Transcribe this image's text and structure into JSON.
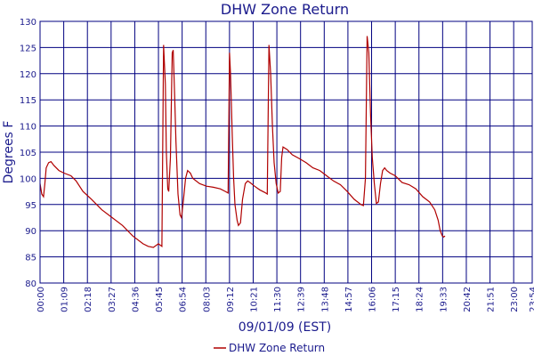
{
  "chart_data": {
    "type": "line",
    "title": "DHW Zone Return",
    "xlabel": "09/01/09 (EST)",
    "ylabel": "Degrees F",
    "ylim": [
      80,
      130
    ],
    "yticks": [
      80,
      85,
      90,
      95,
      100,
      105,
      110,
      115,
      120,
      125,
      130
    ],
    "xlim_minutes": [
      0,
      1434
    ],
    "xtick_labels": [
      "00:00",
      "01:09",
      "02:18",
      "03:27",
      "04:36",
      "05:45",
      "06:54",
      "08:03",
      "09:12",
      "10:21",
      "11:30",
      "12:39",
      "13:48",
      "14:57",
      "16:06",
      "17:15",
      "18:24",
      "19:33",
      "20:42",
      "21:51",
      "23:00",
      "23:54"
    ],
    "xtick_minutes": [
      0,
      69,
      138,
      207,
      276,
      345,
      414,
      483,
      552,
      621,
      690,
      759,
      828,
      897,
      966,
      1035,
      1104,
      1173,
      1242,
      1311,
      1380,
      1434
    ],
    "grid": true,
    "legend_position": "bottom-center",
    "colors": {
      "series": "#b00000",
      "grid": "#000080",
      "text": "#1a1a8c"
    },
    "series": [
      {
        "name": "DHW Zone Return",
        "points": [
          [
            0,
            99
          ],
          [
            5,
            97
          ],
          [
            10,
            96.5
          ],
          [
            14,
            99
          ],
          [
            18,
            102
          ],
          [
            25,
            103
          ],
          [
            32,
            103.2
          ],
          [
            40,
            102.5
          ],
          [
            55,
            101.5
          ],
          [
            70,
            101
          ],
          [
            90,
            100.5
          ],
          [
            105,
            99.5
          ],
          [
            125,
            97.5
          ],
          [
            150,
            96
          ],
          [
            180,
            94
          ],
          [
            210,
            92.5
          ],
          [
            240,
            91
          ],
          [
            270,
            89
          ],
          [
            300,
            87.5
          ],
          [
            315,
            87
          ],
          [
            330,
            86.8
          ],
          [
            345,
            87.5
          ],
          [
            355,
            87
          ],
          [
            360,
            125.5
          ],
          [
            365,
            118
          ],
          [
            368,
            105
          ],
          [
            372,
            98
          ],
          [
            375,
            97.5
          ],
          [
            380,
            104
          ],
          [
            385,
            124
          ],
          [
            388,
            124.5
          ],
          [
            392,
            116
          ],
          [
            396,
            107
          ],
          [
            402,
            97
          ],
          [
            408,
            93
          ],
          [
            412,
            92.5
          ],
          [
            418,
            96
          ],
          [
            424,
            100
          ],
          [
            430,
            101.5
          ],
          [
            438,
            101
          ],
          [
            445,
            100
          ],
          [
            465,
            99
          ],
          [
            485,
            98.5
          ],
          [
            505,
            98.3
          ],
          [
            525,
            98
          ],
          [
            540,
            97.5
          ],
          [
            548,
            97.2
          ],
          [
            552,
            124
          ],
          [
            555,
            120
          ],
          [
            560,
            108
          ],
          [
            564,
            100
          ],
          [
            568,
            95
          ],
          [
            574,
            92
          ],
          [
            578,
            91
          ],
          [
            584,
            91.5
          ],
          [
            590,
            96
          ],
          [
            598,
            99
          ],
          [
            605,
            99.5
          ],
          [
            612,
            99.2
          ],
          [
            625,
            98.5
          ],
          [
            640,
            97.8
          ],
          [
            655,
            97.3
          ],
          [
            662,
            97
          ],
          [
            667,
            125.5
          ],
          [
            672,
            120
          ],
          [
            677,
            110
          ],
          [
            682,
            103
          ],
          [
            688,
            99
          ],
          [
            694,
            97.2
          ],
          [
            700,
            97.5
          ],
          [
            704,
            104
          ],
          [
            708,
            106
          ],
          [
            720,
            105.5
          ],
          [
            735,
            104.5
          ],
          [
            755,
            103.8
          ],
          [
            775,
            103
          ],
          [
            795,
            102
          ],
          [
            815,
            101.5
          ],
          [
            835,
            100.5
          ],
          [
            855,
            99.5
          ],
          [
            875,
            98.8
          ],
          [
            895,
            97.5
          ],
          [
            915,
            96
          ],
          [
            935,
            95
          ],
          [
            942,
            94.8
          ],
          [
            948,
            100
          ],
          [
            953,
            127.2
          ],
          [
            958,
            124
          ],
          [
            963,
            112
          ],
          [
            968,
            104
          ],
          [
            974,
            99
          ],
          [
            980,
            95.2
          ],
          [
            986,
            95.5
          ],
          [
            992,
            99
          ],
          [
            998,
            101.5
          ],
          [
            1004,
            102
          ],
          [
            1010,
            101.5
          ],
          [
            1020,
            101
          ],
          [
            1035,
            100.5
          ],
          [
            1055,
            99.2
          ],
          [
            1075,
            98.8
          ],
          [
            1095,
            98
          ],
          [
            1115,
            96.5
          ],
          [
            1135,
            95.5
          ],
          [
            1150,
            94
          ],
          [
            1160,
            92
          ],
          [
            1166,
            90
          ],
          [
            1172,
            89
          ],
          [
            1176,
            88.8
          ],
          [
            1180,
            89
          ]
        ]
      }
    ]
  }
}
